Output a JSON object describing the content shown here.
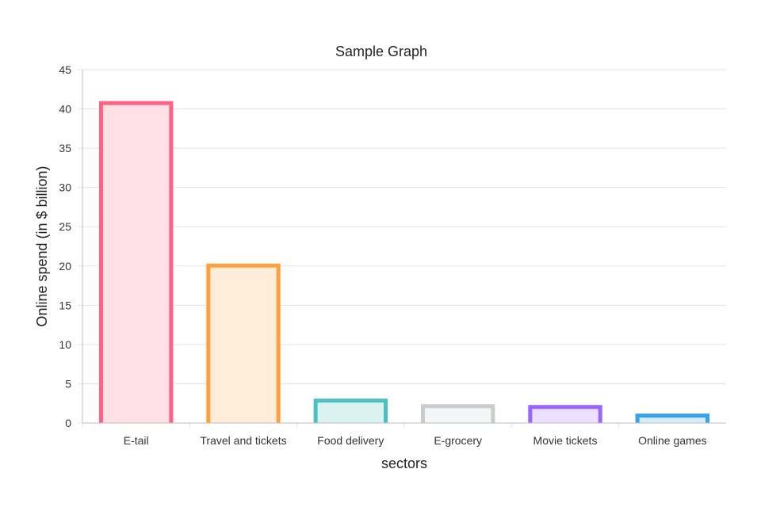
{
  "chart_data": {
    "type": "bar",
    "title": "Sample Graph",
    "xlabel": "sectors",
    "ylabel": "Online spend (in $ billion)",
    "categories": [
      "E-tail",
      "Travel and tickets",
      "Food delivery",
      "E-grocery",
      "Movie tickets",
      "Online games"
    ],
    "values": [
      41,
      20.3,
      3.1,
      2.4,
      2.3,
      1.2
    ],
    "ylim": [
      0,
      45
    ],
    "yticks": [
      0,
      5,
      10,
      15,
      20,
      25,
      30,
      35,
      40,
      45
    ],
    "grid": true,
    "legend": "none",
    "colors": {
      "borders": [
        "#ff6384",
        "#ff9f40",
        "#4bc0c0",
        "#c9cbcf",
        "#9966ff",
        "#36a2eb"
      ],
      "fills": [
        "#ffe0e6",
        "#ffecd9",
        "#dbf2f2",
        "#f4f5f5",
        "#ebe0ff",
        "#d7ecfb"
      ]
    }
  }
}
